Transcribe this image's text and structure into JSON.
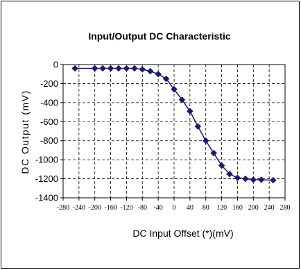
{
  "chart_data": {
    "type": "line",
    "title": "Input/Output DC Characteristic",
    "xlabel": "DC Input Offset (*)(mV)",
    "ylabel": "DC Output (mV)",
    "xlim": [
      -280,
      280
    ],
    "ylim": [
      -1400,
      0
    ],
    "xticks": [
      -280,
      -240,
      -200,
      -160,
      -120,
      -80,
      -40,
      0,
      40,
      80,
      120,
      160,
      200,
      240,
      280
    ],
    "yticks": [
      0,
      -200,
      -400,
      -600,
      -800,
      -1000,
      -1200,
      -1400
    ],
    "grid": true,
    "marker": "diamond",
    "colors": {
      "line": "#1b1b6e",
      "marker": "#1b1b6e",
      "grid": "#000000"
    },
    "series": [
      {
        "x": [
          -250,
          -200,
          -180,
          -160,
          -140,
          -120,
          -100,
          -80,
          -60,
          -40,
          -20,
          0,
          20,
          40,
          60,
          80,
          100,
          120,
          140,
          160,
          180,
          200,
          220,
          250
        ],
        "values": [
          -40,
          -40,
          -40,
          -40,
          -40,
          -40,
          -40,
          -50,
          -70,
          -100,
          -150,
          -260,
          -370,
          -490,
          -650,
          -800,
          -930,
          -1060,
          -1150,
          -1190,
          -1200,
          -1210,
          -1210,
          -1215
        ]
      }
    ]
  }
}
